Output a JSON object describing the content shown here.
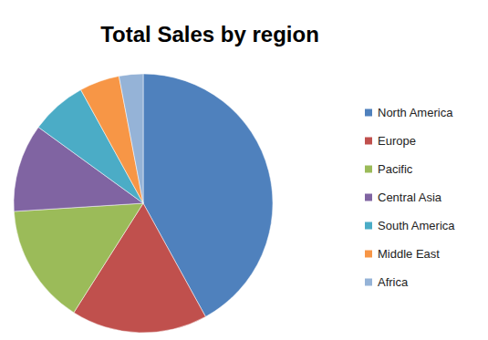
{
  "chart_data": {
    "type": "pie",
    "title": "Total Sales by region",
    "categories": [
      "North America",
      "Europe",
      "Pacific",
      "Central Asia",
      "South America",
      "Middle East",
      "Africa"
    ],
    "values": [
      42,
      17,
      15,
      11,
      7,
      5,
      3
    ],
    "colors": [
      "#4f81bd",
      "#c0504d",
      "#9bbb59",
      "#8064a2",
      "#4bacc6",
      "#f79646",
      "#95b3d7"
    ],
    "legend": "right"
  }
}
